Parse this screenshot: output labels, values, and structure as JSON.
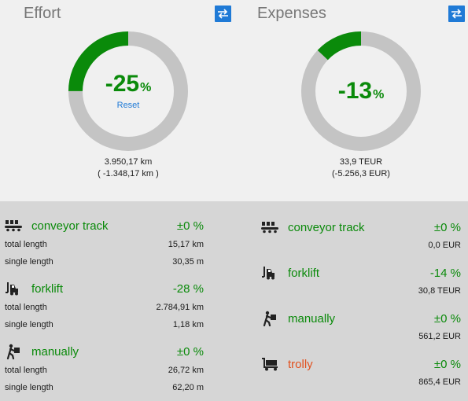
{
  "effort": {
    "title": "Effort",
    "swap_icon": "swap-arrows-icon",
    "percent": "-25",
    "percent_sign": "%",
    "reset_label": "Reset",
    "ratio": 0.25,
    "total": "3.950,17 km",
    "delta": "( -1.348,17 km )",
    "categories": [
      {
        "icon": "conveyor-icon",
        "name": "conveyor track",
        "pct": "±0 %",
        "rows": [
          {
            "label": "total length",
            "value": "15,17 km"
          },
          {
            "label": "single length",
            "value": "30,35 m"
          }
        ]
      },
      {
        "icon": "forklift-icon",
        "name": "forklift",
        "pct": "-28 %",
        "rows": [
          {
            "label": "total length",
            "value": "2.784,91 km"
          },
          {
            "label": "single length",
            "value": "1,18 km"
          }
        ]
      },
      {
        "icon": "person-carrying-icon",
        "name": "manually",
        "pct": "±0 %",
        "rows": [
          {
            "label": "total length",
            "value": "26,72 km"
          },
          {
            "label": "single length",
            "value": "62,20 m"
          }
        ]
      }
    ]
  },
  "expenses": {
    "title": "Expenses",
    "swap_icon": "swap-arrows-icon",
    "percent": "-13",
    "percent_sign": "%",
    "ratio": 0.13,
    "total": "33,9 TEUR",
    "delta": "(-5.256,3 EUR)",
    "categories": [
      {
        "icon": "conveyor-icon",
        "name": "conveyor track",
        "pct": "±0 %",
        "value": "0,0 EUR"
      },
      {
        "icon": "forklift-icon",
        "name": "forklift",
        "pct": "-14 %",
        "value": "30,8 TEUR"
      },
      {
        "icon": "person-carrying-icon",
        "name": "manually",
        "pct": "±0 %",
        "value": "561,2 EUR"
      },
      {
        "icon": "trolley-icon",
        "name": "trolly",
        "pct": "±0 %",
        "value": "865,4 EUR"
      }
    ]
  },
  "colors": {
    "green": "#0a8a0a",
    "grey_ring": "#c4c4c4",
    "accent_blue": "#1f7ad6",
    "warning_orange": "#e2501d"
  }
}
